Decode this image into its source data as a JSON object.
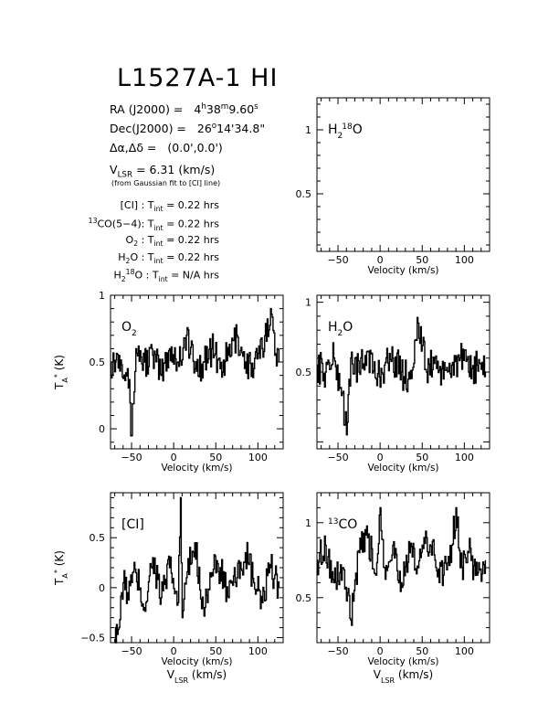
{
  "header": {
    "title": "L1527A-1 HI",
    "ra_label": "RA (J2000) =",
    "ra_h": "4",
    "ra_m": "38",
    "ra_s": "9.60",
    "dec_label": "Dec(J2000) =",
    "dec_d": "26",
    "dec_rest": "14'34.8\"",
    "offset_label": "Δα,Δδ =",
    "offset_value": "(0.0',0.0')",
    "vlsr_value": "= 6.31 (km/s)",
    "vlsr_note": "(from Gaussian fit to [CI] line)"
  },
  "integration": [
    {
      "species": "[CI] :",
      "value": "= 0.22 hrs"
    },
    {
      "species": "CO(5−4):",
      "value": "= 0.22 hrs",
      "iso": "13"
    },
    {
      "species": "O",
      "value": "= 0.22 hrs",
      "sub": "2"
    },
    {
      "species": "H",
      "value": "= 0.22 hrs",
      "sub": "2",
      "tail": "O"
    },
    {
      "species": "H",
      "value": "= N/A hrs",
      "sub": "2",
      "iso": "18",
      "tail": "O"
    }
  ],
  "chart_data": [
    {
      "type": "line",
      "id": "h218o",
      "label": "H2 18O",
      "xlim": [
        -75,
        130
      ],
      "ylim": [
        0.05,
        1.25
      ],
      "xticks": [
        -50,
        0,
        50,
        100
      ],
      "yticks": [
        0.5,
        1
      ],
      "xlabel": "Velocity (km/s)",
      "ylabel": "",
      "series": []
    },
    {
      "type": "line",
      "id": "o2",
      "label": "O2",
      "xlim": [
        -75,
        130
      ],
      "ylim": [
        -0.15,
        1.0
      ],
      "xticks": [
        -50,
        0,
        50,
        100
      ],
      "yticks": [
        0,
        0.5,
        1
      ],
      "xlabel": "Velocity (km/s)",
      "ylabel": "TA* (K)",
      "series": [
        {
          "x": [
            -75,
            -65,
            -55,
            -50,
            -45,
            -35,
            -25,
            -15,
            -5,
            5,
            15,
            25,
            35,
            45,
            55,
            65,
            75,
            85,
            95,
            105,
            115,
            120,
            125
          ],
          "y": [
            0.5,
            0.55,
            0.45,
            -0.05,
            0.6,
            0.5,
            0.55,
            0.4,
            0.6,
            0.5,
            0.7,
            0.45,
            0.5,
            0.6,
            0.45,
            0.55,
            0.7,
            0.5,
            0.45,
            0.6,
            0.9,
            0.55,
            0.5
          ]
        }
      ]
    },
    {
      "type": "line",
      "id": "h2o",
      "label": "H2O",
      "xlim": [
        -75,
        130
      ],
      "ylim": [
        -0.05,
        1.05
      ],
      "xticks": [
        -50,
        0,
        50,
        100
      ],
      "yticks": [
        0.5,
        1
      ],
      "xlabel": "Velocity (km/s)",
      "ylabel": "",
      "series": [
        {
          "x": [
            -75,
            -65,
            -55,
            -45,
            -40,
            -35,
            -25,
            -15,
            -5,
            5,
            15,
            25,
            35,
            45,
            55,
            65,
            75,
            85,
            95,
            105,
            115,
            125
          ],
          "y": [
            0.55,
            0.5,
            0.6,
            0.35,
            0.05,
            0.6,
            0.5,
            0.65,
            0.45,
            0.55,
            0.6,
            0.5,
            0.45,
            0.85,
            0.5,
            0.6,
            0.45,
            0.55,
            0.6,
            0.5,
            0.55,
            0.5
          ]
        }
      ]
    },
    {
      "type": "line",
      "id": "ci",
      "label": "[CI]",
      "xlim": [
        -75,
        130
      ],
      "ylim": [
        -0.55,
        0.95
      ],
      "xticks": [
        -50,
        0,
        50,
        100
      ],
      "yticks": [
        -0.5,
        0,
        0.5
      ],
      "xlabel": "Velocity (km/s)",
      "xlabel2": "VLSR (km/s)",
      "ylabel": "TA* (K)",
      "series": [
        {
          "x": [
            -70,
            -65,
            -60,
            -55,
            -45,
            -35,
            -25,
            -15,
            -5,
            5,
            8,
            10,
            15,
            25,
            35,
            45,
            55,
            65,
            75,
            85,
            95,
            105,
            115,
            125
          ],
          "y": [
            -0.4,
            -0.4,
            0.05,
            -0.05,
            0.15,
            -0.2,
            0.3,
            -0.1,
            0.2,
            -0.15,
            0.9,
            -0.3,
            0.1,
            0.45,
            -0.2,
            0.15,
            0.2,
            -0.1,
            0.1,
            0.35,
            0.05,
            -0.15,
            0.2,
            0.0
          ]
        }
      ]
    },
    {
      "type": "line",
      "id": "13co",
      "label": "13CO",
      "xlim": [
        -75,
        130
      ],
      "ylim": [
        0.2,
        1.2
      ],
      "xticks": [
        -50,
        0,
        50,
        100
      ],
      "yticks": [
        0.5,
        1
      ],
      "xlabel": "Velocity (km/s)",
      "xlabel2": "VLSR (km/s)",
      "ylabel": "",
      "series": [
        {
          "x": [
            -75,
            -65,
            -55,
            -45,
            -35,
            -25,
            -15,
            -5,
            0,
            5,
            15,
            25,
            35,
            45,
            55,
            65,
            75,
            85,
            90,
            95,
            105,
            115,
            125
          ],
          "y": [
            0.75,
            0.85,
            0.6,
            0.7,
            0.35,
            0.8,
            0.9,
            0.65,
            1.1,
            0.7,
            0.85,
            0.6,
            0.8,
            0.7,
            0.9,
            0.75,
            0.65,
            0.85,
            1.1,
            0.7,
            0.8,
            0.65,
            0.75
          ]
        }
      ]
    }
  ],
  "labels": {
    "h218o": {
      "main": "H",
      "sub": "2",
      "sup": "18",
      "tail": "O"
    },
    "o2": {
      "main": "O",
      "sub": "2"
    },
    "h2o": {
      "main": "H",
      "sub": "2",
      "tail": "O"
    },
    "ci": {
      "main": "[CI]"
    },
    "13co": {
      "pre": "13",
      "main": "CO"
    }
  }
}
